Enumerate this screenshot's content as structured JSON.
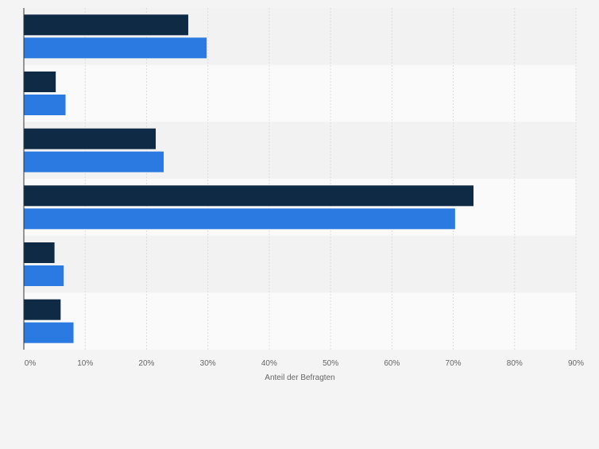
{
  "chart_data": {
    "type": "bar",
    "orientation": "horizontal",
    "categories": [
      "",
      "",
      "",
      "",
      "",
      ""
    ],
    "series": [
      {
        "values": [
          26.8,
          5.2,
          21.5,
          73.3,
          5.0,
          6.0
        ]
      },
      {
        "values": [
          29.8,
          6.8,
          22.8,
          70.3,
          6.5,
          8.1
        ]
      }
    ],
    "xlabel": "Anteil der Befragten",
    "xlim": [
      0,
      90
    ],
    "xticks": [
      "0%",
      "10%",
      "20%",
      "30%",
      "40%",
      "50%",
      "60%",
      "70%",
      "80%",
      "90%"
    ],
    "grid": true,
    "legend": "none"
  },
  "colors": {
    "series_1": "#0f2a44",
    "series_2": "#2a7ae2",
    "band_even": "#f2f2f2",
    "band_odd": "#fafafa",
    "grid": "#dcdcdc",
    "axis": "#333333",
    "tick_text": "#666666"
  }
}
